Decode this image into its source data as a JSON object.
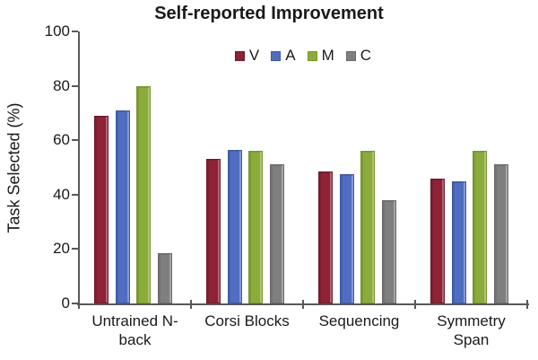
{
  "chart": {
    "title": "Self-reported Improvement",
    "ylabel": "Task Selected (%)"
  },
  "chart_data": {
    "type": "bar",
    "title": "Self-reported Improvement",
    "xlabel": "",
    "ylabel": "Task Selected (%)",
    "ylim": [
      0,
      100
    ],
    "yticks": [
      0,
      20,
      40,
      60,
      80,
      100
    ],
    "grid": false,
    "legend_position": "top-center",
    "categories": [
      "Untrained N-back",
      "Corsi Blocks",
      "Sequencing",
      "Symmetry Span"
    ],
    "category_label_lines": [
      [
        "Untrained N-",
        "back"
      ],
      [
        "Corsi Blocks"
      ],
      [
        "Sequencing"
      ],
      [
        "Symmetry",
        "Span"
      ]
    ],
    "series": [
      {
        "name": "V",
        "color": "#8E2236",
        "border_color": "#6F1728",
        "values": [
          69,
          53,
          48.5,
          46
        ]
      },
      {
        "name": "A",
        "color": "#4F6EC1",
        "border_color": "#3C59A6",
        "values": [
          71,
          56.5,
          47.5,
          45
        ]
      },
      {
        "name": "M",
        "color": "#8AAC3A",
        "border_color": "#76972E",
        "values": [
          80,
          56,
          56,
          56
        ]
      },
      {
        "name": "C",
        "color": "#7F7F7F",
        "border_color": "#6A6A6A",
        "values": [
          18.5,
          51,
          38,
          51
        ]
      }
    ],
    "axis_color": "#595959",
    "text_color": "#1A1A1A"
  }
}
